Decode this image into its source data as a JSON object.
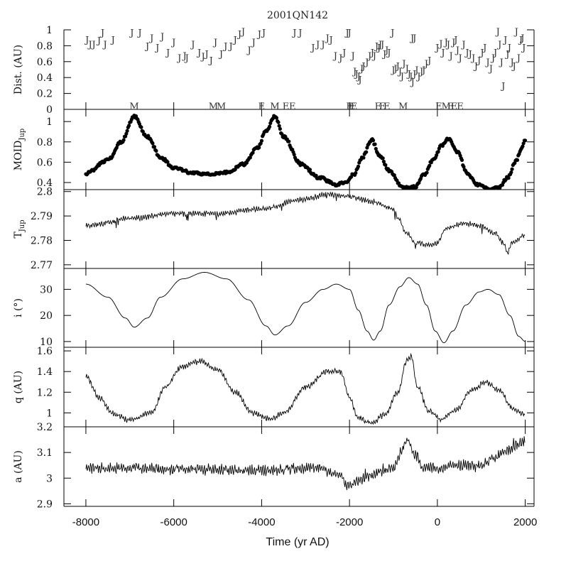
{
  "figure": {
    "title": "2001QN142",
    "xlabel": "Time (yr AD)",
    "xlim": [
      -8500,
      2200
    ],
    "xticks": [
      -8000,
      -6000,
      -4000,
      -2000,
      0,
      2000
    ],
    "xtick_labels": [
      "-8000",
      "-6000",
      "-4000",
      "-2000",
      "0",
      "2000"
    ]
  },
  "chart_data": [
    {
      "id": "dist",
      "type": "scatter",
      "ylabel": "Dist. (AU)",
      "ylim": [
        0,
        1
      ],
      "yticks": [
        0,
        0.2,
        0.4,
        0.6,
        0.8,
        1
      ],
      "ytick_labels": [
        "0",
        "0.2",
        "0.4",
        "0.6",
        "0.8",
        "1"
      ],
      "marker_text": "J",
      "points": [
        [
          -7970,
          0.88
        ],
        [
          -7900,
          0.82
        ],
        [
          -7820,
          0.82
        ],
        [
          -7700,
          0.87
        ],
        [
          -7620,
          0.97
        ],
        [
          -7560,
          0.82
        ],
        [
          -7380,
          0.88
        ],
        [
          -6950,
          0.97
        ],
        [
          -6770,
          0.97
        ],
        [
          -6600,
          0.8
        ],
        [
          -6500,
          0.9
        ],
        [
          -6370,
          0.78
        ],
        [
          -6260,
          0.92
        ],
        [
          -6130,
          0.72
        ],
        [
          -6000,
          0.85
        ],
        [
          -5870,
          0.65
        ],
        [
          -5750,
          0.68
        ],
        [
          -5700,
          0.65
        ],
        [
          -5560,
          0.82
        ],
        [
          -5420,
          0.72
        ],
        [
          -5330,
          0.67
        ],
        [
          -5250,
          0.7
        ],
        [
          -5150,
          0.62
        ],
        [
          -5050,
          0.85
        ],
        [
          -4920,
          0.7
        ],
        [
          -4820,
          0.8
        ],
        [
          -4700,
          0.8
        ],
        [
          -4600,
          0.88
        ],
        [
          -4500,
          0.95
        ],
        [
          -4420,
          0.98
        ],
        [
          -4280,
          0.75
        ],
        [
          -4180,
          0.85
        ],
        [
          -4050,
          0.95
        ],
        [
          -3950,
          0.97
        ],
        [
          -3250,
          0.97
        ],
        [
          -3120,
          0.97
        ],
        [
          -2830,
          0.78
        ],
        [
          -2720,
          0.82
        ],
        [
          -2600,
          0.82
        ],
        [
          -2500,
          0.9
        ],
        [
          -2420,
          0.88
        ],
        [
          -2320,
          0.68
        ],
        [
          -2200,
          0.65
        ],
        [
          -2120,
          0.72
        ],
        [
          -2050,
          0.97
        ],
        [
          -2000,
          0.97
        ],
        [
          -1920,
          0.68
        ],
        [
          -1880,
          0.48
        ],
        [
          -1840,
          0.45
        ],
        [
          -1790,
          0.42
        ],
        [
          -1760,
          0.38
        ],
        [
          -1720,
          0.52
        ],
        [
          -1680,
          0.55
        ],
        [
          -1600,
          0.6
        ],
        [
          -1540,
          0.68
        ],
        [
          -1480,
          0.72
        ],
        [
          -1430,
          0.68
        ],
        [
          -1380,
          0.8
        ],
        [
          -1330,
          0.78
        ],
        [
          -1300,
          0.82
        ],
        [
          -1250,
          0.82
        ],
        [
          -1200,
          0.7
        ],
        [
          -1150,
          0.75
        ],
        [
          -1100,
          0.72
        ],
        [
          -1000,
          0.5
        ],
        [
          -950,
          0.52
        ],
        [
          -900,
          0.55
        ],
        [
          -850,
          0.48
        ],
        [
          -800,
          0.42
        ],
        [
          -760,
          0.58
        ],
        [
          -690,
          0.52
        ],
        [
          -640,
          0.45
        ],
        [
          -600,
          0.42
        ],
        [
          -560,
          0.35
        ],
        [
          -520,
          0.45
        ],
        [
          -470,
          0.5
        ],
        [
          -420,
          0.42
        ],
        [
          -360,
          0.48
        ],
        [
          -310,
          0.5
        ],
        [
          -250,
          0.58
        ],
        [
          -180,
          0.62
        ],
        [
          -1020,
          0.97
        ],
        [
          -570,
          0.9
        ],
        [
          -520,
          0.9
        ],
        [
          0,
          0.78
        ],
        [
          80,
          0.83
        ],
        [
          130,
          0.72
        ],
        [
          200,
          0.85
        ],
        [
          250,
          0.82
        ],
        [
          310,
          0.68
        ],
        [
          370,
          0.85
        ],
        [
          420,
          0.88
        ],
        [
          460,
          0.75
        ],
        [
          520,
          0.65
        ],
        [
          600,
          0.82
        ],
        [
          680,
          0.72
        ],
        [
          750,
          0.7
        ],
        [
          820,
          0.65
        ],
        [
          880,
          0.55
        ],
        [
          950,
          0.62
        ],
        [
          1020,
          0.72
        ],
        [
          1080,
          0.78
        ],
        [
          1150,
          0.6
        ],
        [
          1220,
          0.52
        ],
        [
          1270,
          0.65
        ],
        [
          1320,
          0.72
        ],
        [
          1380,
          0.98
        ],
        [
          1420,
          0.82
        ],
        [
          1460,
          0.6
        ],
        [
          1500,
          0.3
        ],
        [
          1550,
          0.88
        ],
        [
          1600,
          0.7
        ],
        [
          1640,
          0.78
        ],
        [
          1700,
          0.6
        ],
        [
          1750,
          0.55
        ],
        [
          1800,
          0.98
        ],
        [
          1850,
          0.65
        ],
        [
          1900,
          0.88
        ],
        [
          1940,
          0.9
        ],
        [
          1970,
          0.78
        ]
      ],
      "labels_bottom": [
        {
          "x": -6900,
          "text": "M"
        },
        {
          "x": -5100,
          "text": "M"
        },
        {
          "x": -4920,
          "text": "M"
        },
        {
          "x": -4000,
          "text": "E"
        },
        {
          "x": -3700,
          "text": "M"
        },
        {
          "x": -3450,
          "text": "E"
        },
        {
          "x": -3300,
          "text": "E"
        },
        {
          "x": -2000,
          "text": "E"
        },
        {
          "x": -1950,
          "text": "E"
        },
        {
          "x": -1900,
          "text": "E"
        },
        {
          "x": -1350,
          "text": "E"
        },
        {
          "x": -1250,
          "text": "E"
        },
        {
          "x": -1150,
          "text": "E"
        },
        {
          "x": -780,
          "text": "M"
        },
        {
          "x": 30,
          "text": "E"
        },
        {
          "x": 200,
          "text": "M"
        },
        {
          "x": 300,
          "text": "E"
        },
        {
          "x": 380,
          "text": "E"
        },
        {
          "x": 520,
          "text": "E"
        }
      ]
    },
    {
      "id": "moid",
      "type": "scatter",
      "ylabel_main": "MOID",
      "ylabel_sub": "Jup",
      "ylim": [
        0.33,
        1.12
      ],
      "yticks": [
        0.4,
        0.6,
        0.8,
        1
      ],
      "ytick_labels": [
        "0.4",
        "0.6",
        "0.8",
        "1"
      ],
      "marker": "filled-circle",
      "anchors": [
        [
          -8000,
          0.49
        ],
        [
          -7500,
          0.62
        ],
        [
          -7200,
          0.8
        ],
        [
          -6900,
          1.05
        ],
        [
          -6600,
          0.85
        ],
        [
          -6300,
          0.65
        ],
        [
          -6000,
          0.54
        ],
        [
          -5600,
          0.5
        ],
        [
          -5200,
          0.48
        ],
        [
          -4800,
          0.5
        ],
        [
          -4400,
          0.58
        ],
        [
          -4100,
          0.74
        ],
        [
          -3900,
          0.9
        ],
        [
          -3700,
          1.05
        ],
        [
          -3500,
          0.85
        ],
        [
          -3100,
          0.58
        ],
        [
          -2700,
          0.45
        ],
        [
          -2300,
          0.38
        ],
        [
          -2100,
          0.4
        ],
        [
          -1900,
          0.48
        ],
        [
          -1700,
          0.65
        ],
        [
          -1500,
          0.82
        ],
        [
          -1300,
          0.66
        ],
        [
          -1100,
          0.52
        ],
        [
          -800,
          0.36
        ],
        [
          -500,
          0.36
        ],
        [
          -300,
          0.48
        ],
        [
          -100,
          0.62
        ],
        [
          100,
          0.76
        ],
        [
          250,
          0.83
        ],
        [
          450,
          0.7
        ],
        [
          700,
          0.48
        ],
        [
          900,
          0.38
        ],
        [
          1200,
          0.33
        ],
        [
          1400,
          0.35
        ],
        [
          1600,
          0.45
        ],
        [
          1800,
          0.62
        ],
        [
          1900,
          0.72
        ],
        [
          2000,
          0.82
        ]
      ]
    },
    {
      "id": "tjup",
      "type": "line",
      "ylabel_main": "T",
      "ylabel_sub": "Jup",
      "ylim": [
        2.7685,
        2.8008
      ],
      "yticks": [
        2.77,
        2.78,
        2.79,
        2.8
      ],
      "ytick_labels": [
        "2.77",
        "2.78",
        "2.79",
        "2.8"
      ],
      "anchors": [
        [
          -8000,
          2.786
        ],
        [
          -7000,
          2.789
        ],
        [
          -6000,
          2.791
        ],
        [
          -5000,
          2.791
        ],
        [
          -4000,
          2.793
        ],
        [
          -3000,
          2.797
        ],
        [
          -2500,
          2.799
        ],
        [
          -2000,
          2.798
        ],
        [
          -1500,
          2.796
        ],
        [
          -1000,
          2.793
        ],
        [
          -900,
          2.789
        ],
        [
          -700,
          2.783
        ],
        [
          -500,
          2.779
        ],
        [
          -200,
          2.778
        ],
        [
          0,
          2.779
        ],
        [
          200,
          2.785
        ],
        [
          400,
          2.786
        ],
        [
          600,
          2.787
        ],
        [
          1000,
          2.786
        ],
        [
          1300,
          2.783
        ],
        [
          1500,
          2.779
        ],
        [
          1600,
          2.775
        ],
        [
          1700,
          2.779
        ],
        [
          2000,
          2.782
        ]
      ],
      "noise": 0.0012
    },
    {
      "id": "incl",
      "type": "line",
      "ylabel": "i (°)",
      "ylim": [
        7.8,
        38
      ],
      "yticks": [
        10,
        20,
        30
      ],
      "ytick_labels": [
        "10",
        "20",
        "30"
      ],
      "anchors": [
        [
          -8000,
          32
        ],
        [
          -7500,
          27
        ],
        [
          -7100,
          19
        ],
        [
          -6900,
          15.5
        ],
        [
          -6600,
          19
        ],
        [
          -6300,
          27
        ],
        [
          -5800,
          34
        ],
        [
          -5300,
          36.5
        ],
        [
          -4800,
          34
        ],
        [
          -4300,
          26
        ],
        [
          -3900,
          16
        ],
        [
          -3700,
          12.5
        ],
        [
          -3400,
          16
        ],
        [
          -3000,
          25
        ],
        [
          -2600,
          30
        ],
        [
          -2300,
          32
        ],
        [
          -2000,
          30
        ],
        [
          -1800,
          22
        ],
        [
          -1600,
          14
        ],
        [
          -1450,
          10.5
        ],
        [
          -1300,
          14
        ],
        [
          -1100,
          24
        ],
        [
          -850,
          31
        ],
        [
          -650,
          34.5
        ],
        [
          -450,
          32
        ],
        [
          -250,
          24
        ],
        [
          -50,
          14
        ],
        [
          150,
          9.5
        ],
        [
          350,
          14
        ],
        [
          650,
          24
        ],
        [
          950,
          29
        ],
        [
          1150,
          30
        ],
        [
          1400,
          28
        ],
        [
          1650,
          20
        ],
        [
          1850,
          12
        ],
        [
          2000,
          10
        ]
      ]
    },
    {
      "id": "q",
      "type": "line",
      "ylabel": "q (AU)",
      "ylim": [
        0.865,
        1.635
      ],
      "yticks": [
        1,
        1.2,
        1.4,
        1.6
      ],
      "ytick_labels": [
        "1",
        "1.2",
        "1.4",
        "1.6"
      ],
      "anchors": [
        [
          -8000,
          1.35
        ],
        [
          -7700,
          1.15
        ],
        [
          -7400,
          1.0
        ],
        [
          -7000,
          0.93
        ],
        [
          -6500,
          1.0
        ],
        [
          -6200,
          1.25
        ],
        [
          -5800,
          1.45
        ],
        [
          -5400,
          1.5
        ],
        [
          -5000,
          1.42
        ],
        [
          -4600,
          1.2
        ],
        [
          -4200,
          1.0
        ],
        [
          -3800,
          0.94
        ],
        [
          -3500,
          1.0
        ],
        [
          -3000,
          1.25
        ],
        [
          -2500,
          1.4
        ],
        [
          -2200,
          1.4
        ],
        [
          -2000,
          1.15
        ],
        [
          -1800,
          0.95
        ],
        [
          -1500,
          0.9
        ],
        [
          -1200,
          0.98
        ],
        [
          -900,
          1.2
        ],
        [
          -700,
          1.5
        ],
        [
          -600,
          1.55
        ],
        [
          -450,
          1.25
        ],
        [
          -200,
          1.02
        ],
        [
          100,
          0.94
        ],
        [
          400,
          1.02
        ],
        [
          800,
          1.22
        ],
        [
          1100,
          1.3
        ],
        [
          1400,
          1.22
        ],
        [
          1700,
          1.05
        ],
        [
          2000,
          0.98
        ]
      ],
      "noise": 0.03
    },
    {
      "id": "a",
      "type": "line",
      "ylabel": "a (AU)",
      "ylim": [
        2.89,
        3.2
      ],
      "yticks": [
        2.9,
        3,
        3.1,
        3.2
      ],
      "ytick_labels": [
        "2.9",
        "3",
        "3.1",
        "3.2"
      ],
      "anchors": [
        [
          -8000,
          3.04
        ],
        [
          -6000,
          3.035
        ],
        [
          -4000,
          3.03
        ],
        [
          -2800,
          3.04
        ],
        [
          -2300,
          3.02
        ],
        [
          -2000,
          2.97
        ],
        [
          -1800,
          2.99
        ],
        [
          -1400,
          3.02
        ],
        [
          -1000,
          3.04
        ],
        [
          -800,
          3.11
        ],
        [
          -700,
          3.15
        ],
        [
          -500,
          3.09
        ],
        [
          -300,
          3.04
        ],
        [
          0,
          3.04
        ],
        [
          500,
          3.05
        ],
        [
          1000,
          3.05
        ],
        [
          1300,
          3.08
        ],
        [
          1600,
          3.11
        ],
        [
          1800,
          3.13
        ],
        [
          2000,
          3.14
        ]
      ],
      "noise": 0.022
    }
  ]
}
